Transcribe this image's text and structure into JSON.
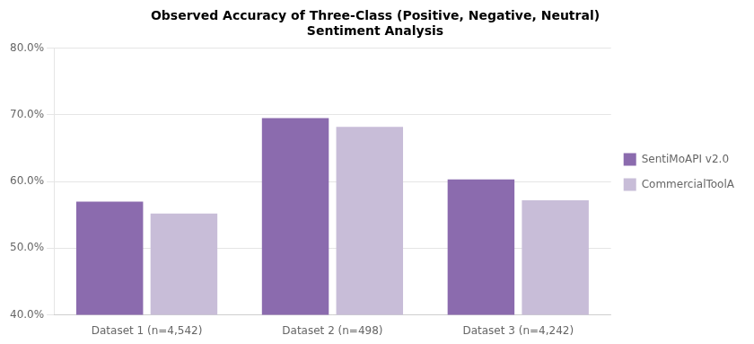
{
  "chart_data": {
    "type": "bar",
    "title": "Observed Accuracy of Three-Class (Positive, Negative, Neutral)\nSentiment Analysis",
    "categories": [
      "Dataset 1 (n=4,542)",
      "Dataset 2 (n=498)",
      "Dataset 3 (n=4,242)"
    ],
    "series": [
      {
        "name": "SentiMoAPI v2.0",
        "color": "#8B6BAE",
        "values": [
          0.57,
          0.695,
          0.603
        ]
      },
      {
        "name": "CommercialToolA",
        "color": "#C8BDD8",
        "values": [
          0.552,
          0.682,
          0.572
        ]
      }
    ],
    "ylim": [
      0.4,
      0.8
    ],
    "yticks": [
      {
        "value": 0.4,
        "label": "40.0%"
      },
      {
        "value": 0.5,
        "label": "50.0%"
      },
      {
        "value": 0.6,
        "label": "60.0%"
      },
      {
        "value": 0.7,
        "label": "70.0%"
      },
      {
        "value": 0.8,
        "label": "80.0%"
      }
    ],
    "grid": true,
    "legend": "right"
  }
}
